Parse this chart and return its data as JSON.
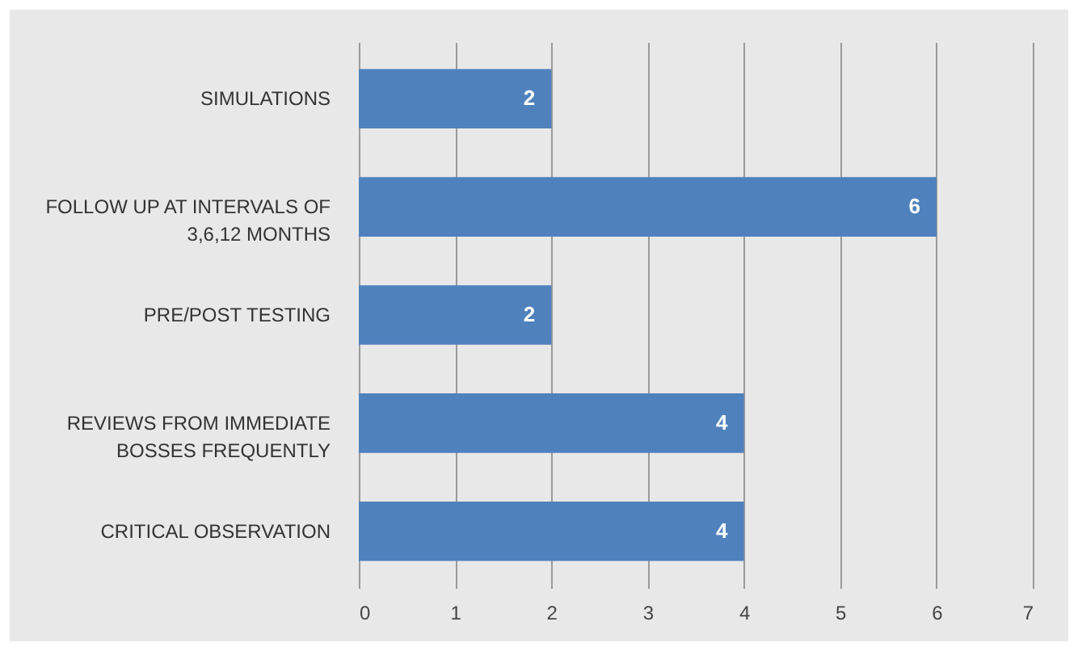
{
  "chart_data": {
    "type": "bar",
    "orientation": "horizontal",
    "categories": [
      "SIMULATIONS",
      "FOLLOW UP AT INTERVALS OF 3,6,12 MONTHS",
      "PRE/POST TESTING",
      "REVIEWS FROM IMMEDIATE BOSSES FREQUENTLY",
      "CRITICAL OBSERVATION"
    ],
    "values": [
      2,
      6,
      2,
      4,
      4
    ],
    "color": "#4f81bd",
    "xlim": [
      0,
      7
    ],
    "xticks": [
      0,
      1,
      2,
      3,
      4,
      5,
      6,
      7
    ],
    "grid": "x",
    "data_labels": true
  }
}
